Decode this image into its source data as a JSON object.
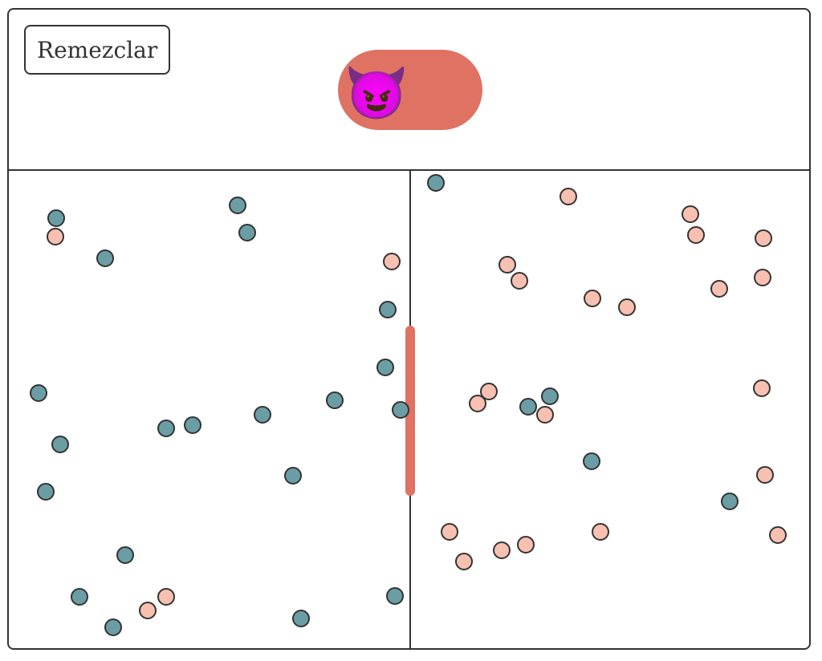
{
  "header": {
    "shuffle_label": "Remezclar",
    "toggle": {
      "icon": "smiling-imp-emoji",
      "glyph": "😈",
      "color": "#df7263",
      "state": "on"
    }
  },
  "colors": {
    "teal": "#6b9ea4",
    "pink": "#f7c0b0",
    "gate": "#df7263",
    "border": "#333333"
  }
}
